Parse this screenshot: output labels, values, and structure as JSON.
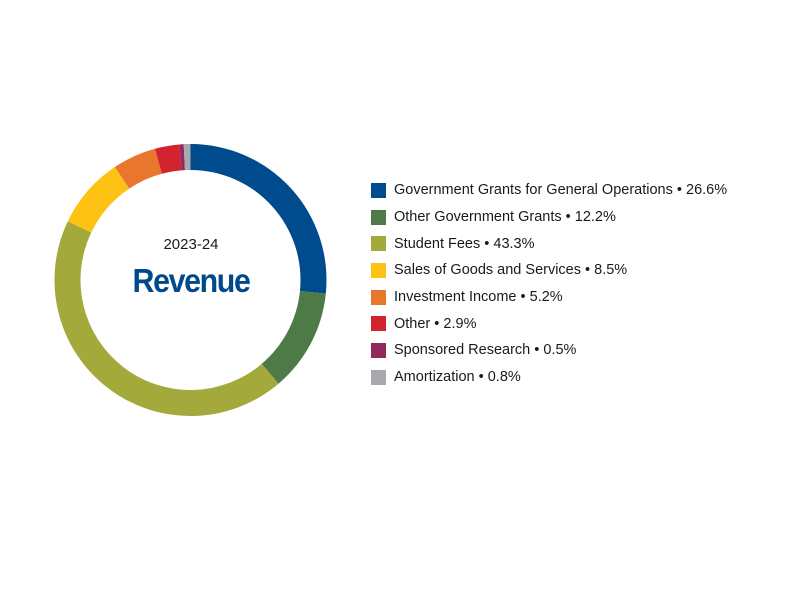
{
  "center": {
    "year": "2023-24",
    "title": "Revenue"
  },
  "legend": {
    "separator": " • ",
    "items": [
      {
        "label": "Government Grants for General Operations",
        "value": "26.6%",
        "color": "#004b8d"
      },
      {
        "label": "Other Government Grants",
        "value": "12.2%",
        "color": "#4e7a48"
      },
      {
        "label": "Student Fees",
        "value": "43.3%",
        "color": "#a3a93a"
      },
      {
        "label": "Sales of Goods and Services",
        "value": "8.5%",
        "color": "#fdc214"
      },
      {
        "label": "Investment Income",
        "value": "5.2%",
        "color": "#e8762d"
      },
      {
        "label": "Other",
        "value": "2.9%",
        "color": "#d2232f"
      },
      {
        "label": "Sponsored Research",
        "value": "0.5%",
        "color": "#93295e"
      },
      {
        "label": "Amortization",
        "value": "0.8%",
        "color": "#a7a9ac"
      }
    ]
  },
  "chart_data": {
    "type": "pie",
    "subtype": "donut",
    "title": "Revenue",
    "subtitle": "2023-24",
    "categories": [
      "Government Grants for General Operations",
      "Other Government Grants",
      "Student Fees",
      "Sales of Goods and Services",
      "Investment Income",
      "Other",
      "Sponsored Research",
      "Amortization"
    ],
    "values": [
      26.6,
      12.2,
      43.3,
      8.5,
      5.2,
      2.9,
      0.5,
      0.8
    ],
    "unit": "%",
    "colors": [
      "#004b8d",
      "#4e7a48",
      "#a3a93a",
      "#fdc214",
      "#e8762d",
      "#d2232f",
      "#93295e",
      "#a7a9ac"
    ],
    "start_angle": "12 o'clock",
    "direction": "clockwise",
    "legend_position": "right"
  }
}
